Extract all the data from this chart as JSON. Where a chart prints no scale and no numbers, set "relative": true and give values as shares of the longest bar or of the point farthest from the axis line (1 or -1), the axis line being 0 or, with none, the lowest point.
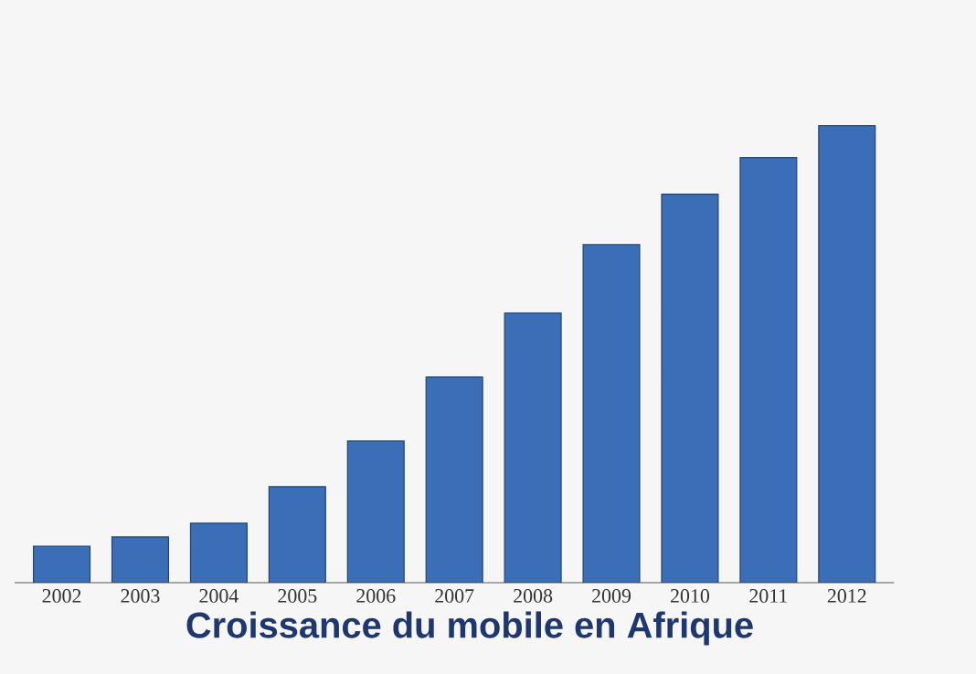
{
  "chart_data": {
    "type": "bar",
    "title": "Croissance du mobile en Afrique",
    "categories": [
      "2002",
      "2003",
      "2004",
      "2005",
      "2006",
      "2007",
      "2008",
      "2009",
      "2010",
      "2011",
      "2012"
    ],
    "values": [
      0.08,
      0.1,
      0.13,
      0.21,
      0.31,
      0.45,
      0.59,
      0.74,
      0.85,
      0.93,
      1
    ],
    "color": "#3a6fb8",
    "relative": true
  }
}
